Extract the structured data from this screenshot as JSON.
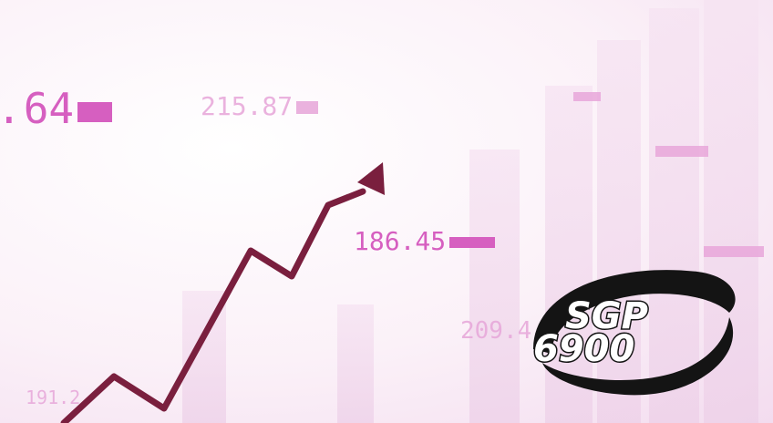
{
  "tickers": {
    "t1": "64",
    "t2": "215.87",
    "t3": "186.45",
    "t4": "191.2",
    "t5": "209.4"
  },
  "logo": {
    "line1": "SGP",
    "line2": "6900"
  },
  "colors": {
    "ticker": "#d65fc0",
    "arrow": "#7a1f3e",
    "logo_dark": "#141414"
  }
}
